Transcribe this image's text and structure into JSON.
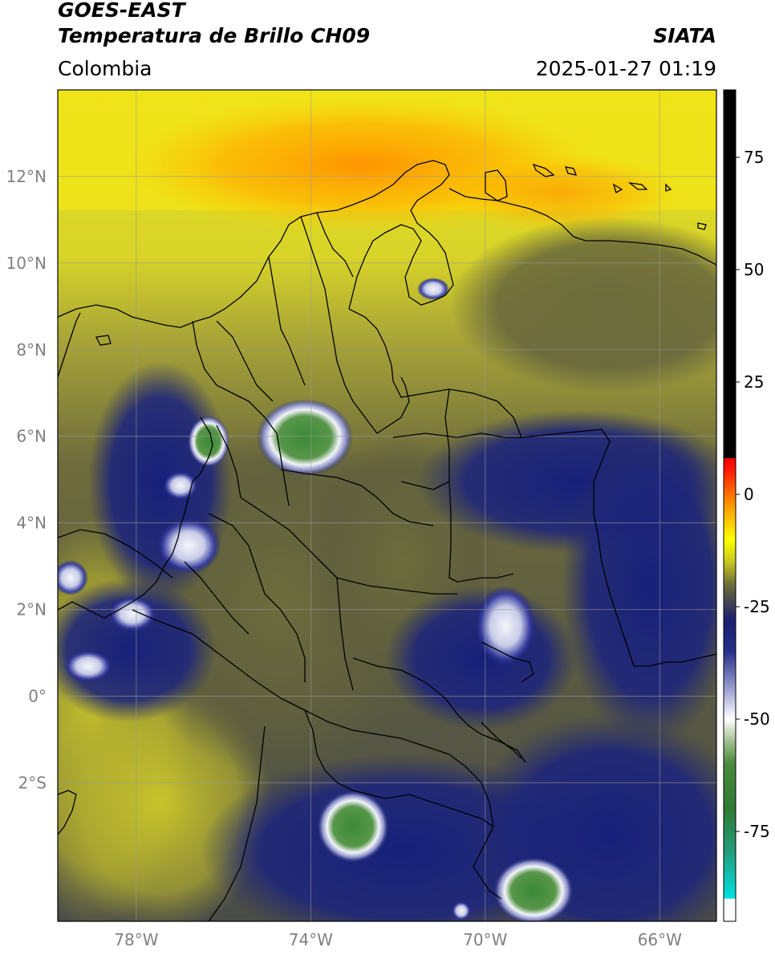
{
  "header": {
    "satellite": "GOES-EAST",
    "product": "Temperatura de Brillo CH09",
    "brand": "SIATA",
    "region": "Colombia",
    "timestamp": "2025-01-27 01:19"
  },
  "map": {
    "lon_range": [
      -79.8,
      -64.7
    ],
    "lat_range": [
      -5.2,
      14.0
    ],
    "lon_ticks": [
      {
        "value": -78,
        "label": "78°W"
      },
      {
        "value": -74,
        "label": "74°W"
      },
      {
        "value": -70,
        "label": "70°W"
      },
      {
        "value": -66,
        "label": "66°W"
      }
    ],
    "lat_ticks": [
      {
        "value": 12,
        "label": "12°N"
      },
      {
        "value": 10,
        "label": "10°N"
      },
      {
        "value": 8,
        "label": "8°N"
      },
      {
        "value": 6,
        "label": "6°N"
      },
      {
        "value": 4,
        "label": "4°N"
      },
      {
        "value": 2,
        "label": "2°N"
      },
      {
        "value": 0,
        "label": "0°"
      },
      {
        "value": -2,
        "label": "2°S"
      }
    ],
    "gridlines": true,
    "colors": {
      "warm": "#ffff00",
      "warmer": "#ff9a00",
      "olive": "#7a7a30",
      "grey_olive": "#55573e",
      "navy": "#1b2272",
      "cold_white": "#e8ecf4",
      "cold_green": "#3f8a3a",
      "outline": "#000000"
    }
  },
  "colorbar": {
    "range": [
      -95,
      90
    ],
    "ticks": [
      {
        "value": 75,
        "label": "75"
      },
      {
        "value": 50,
        "label": "50"
      },
      {
        "value": 25,
        "label": "25"
      },
      {
        "value": 0,
        "label": "0"
      },
      {
        "value": -25,
        "label": "-25"
      },
      {
        "value": -50,
        "label": "-50"
      },
      {
        "value": -75,
        "label": "-75"
      }
    ],
    "stops": [
      {
        "value": -95,
        "color": "#ffffff"
      },
      {
        "value": -90,
        "color": "#ffffff"
      },
      {
        "value": -89.9,
        "color": "#00e0e0"
      },
      {
        "value": -80,
        "color": "#20a080"
      },
      {
        "value": -70,
        "color": "#2e7a34"
      },
      {
        "value": -60,
        "color": "#4a8a3a"
      },
      {
        "value": -55,
        "color": "#a0c090"
      },
      {
        "value": -50,
        "color": "#ffffff"
      },
      {
        "value": -42,
        "color": "#8a8ec8"
      },
      {
        "value": -35,
        "color": "#2a2f8a"
      },
      {
        "value": -28,
        "color": "#1a1f70"
      },
      {
        "value": -25,
        "color": "#3a3c58"
      },
      {
        "value": -20,
        "color": "#6e6e3a"
      },
      {
        "value": -15,
        "color": "#c8c820"
      },
      {
        "value": -10,
        "color": "#ffff00"
      },
      {
        "value": -3,
        "color": "#ffa000"
      },
      {
        "value": 5,
        "color": "#ff2000"
      },
      {
        "value": 8,
        "color": "#ff0000"
      },
      {
        "value": 8.1,
        "color": "#000000"
      },
      {
        "value": 90,
        "color": "#000000"
      }
    ]
  }
}
